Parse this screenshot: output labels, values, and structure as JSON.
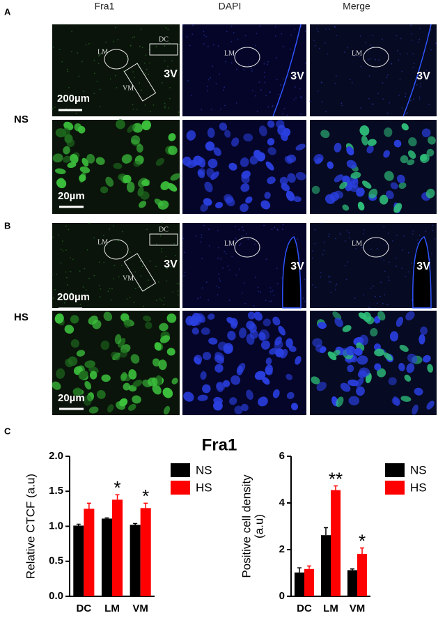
{
  "figure": {
    "column_headers": [
      "Fra1",
      "DAPI",
      "Merge"
    ],
    "panel_labels": [
      "A",
      "B",
      "C"
    ],
    "row_labels": [
      "NS",
      "HS"
    ],
    "region_labels": [
      "LM",
      "DC",
      "VM"
    ],
    "ventricle_label": "3V",
    "scale_bars": [
      "200µm",
      "20µm"
    ],
    "chart_title": "Fra1"
  },
  "chart_data": [
    {
      "type": "bar",
      "ylabel": "Relative CTCF (a.u)",
      "categories": [
        "DC",
        "LM",
        "VM"
      ],
      "series": [
        {
          "name": "NS",
          "color": "#000000",
          "values": [
            1.01,
            1.11,
            1.02
          ],
          "errors": [
            0.02,
            0.01,
            0.02
          ]
        },
        {
          "name": "HS",
          "color": "#ff0000",
          "values": [
            1.25,
            1.38,
            1.26
          ],
          "errors": [
            0.08,
            0.07,
            0.07
          ]
        }
      ],
      "significance": [
        null,
        "*",
        "*"
      ],
      "ylim": [
        0,
        2
      ],
      "yticks": [
        {
          "value": 0,
          "label": "0.0"
        },
        {
          "value": 0.5,
          "label": "0.5"
        },
        {
          "value": 1,
          "label": "1.0"
        },
        {
          "value": 1.5,
          "label": "1.5"
        },
        {
          "value": 2,
          "label": "2.0"
        }
      ],
      "legend": "upper right"
    },
    {
      "type": "bar",
      "ylabel": [
        "Positive cell density",
        "(a.u)"
      ],
      "categories": [
        "DC",
        "LM",
        "VM"
      ],
      "series": [
        {
          "name": "NS",
          "color": "#000000",
          "values": [
            1.02,
            2.62,
            1.12
          ],
          "errors": [
            0.2,
            0.32,
            0.05
          ]
        },
        {
          "name": "HS",
          "color": "#ff0000",
          "values": [
            1.17,
            4.55,
            1.82
          ],
          "errors": [
            0.13,
            0.18,
            0.25
          ]
        }
      ],
      "significance": [
        null,
        "**",
        "*"
      ],
      "ylim": [
        0,
        6
      ],
      "yticks": [
        0,
        2,
        4,
        6
      ],
      "legend": "upper right"
    }
  ]
}
